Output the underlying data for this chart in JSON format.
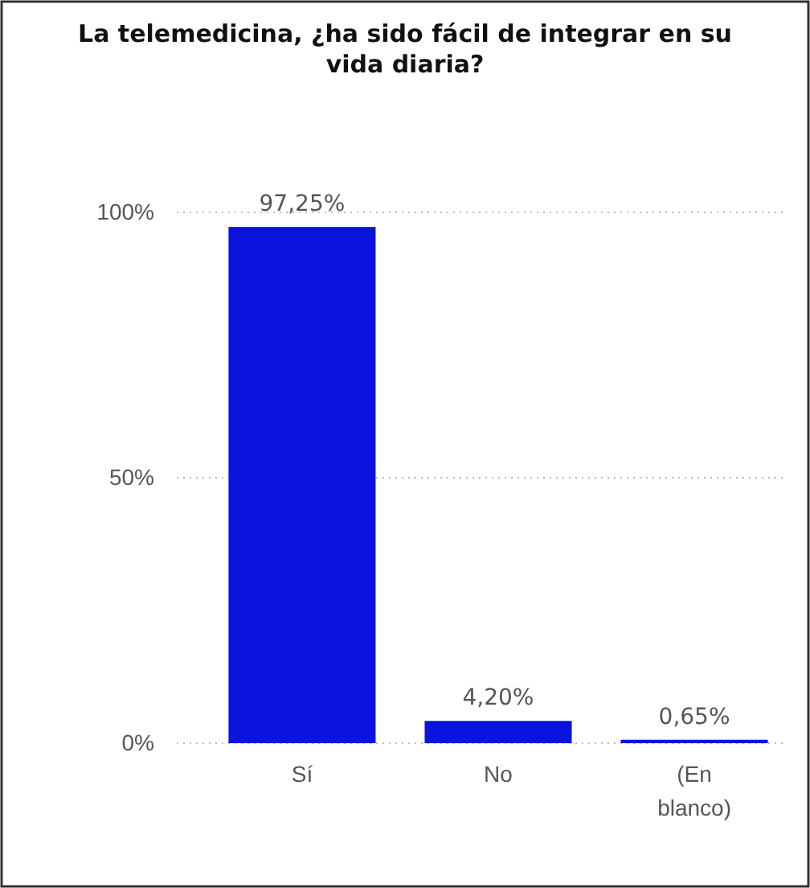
{
  "chart_data": {
    "type": "bar",
    "title": "La telemedicina, ¿ha sido fácil de integrar en su vida diaria?",
    "categories": [
      "Sí",
      "No",
      "(En blanco)"
    ],
    "values": [
      97.25,
      4.2,
      0.65
    ],
    "color": "#0b14dc",
    "value_labels": [
      "97,25%",
      "4,20%",
      "0,65%"
    ],
    "ylim": [
      0,
      100
    ],
    "yticks": [
      {
        "value": 0,
        "label": "0%"
      },
      {
        "value": 50,
        "label": "50%"
      },
      {
        "value": 100,
        "label": "100%"
      }
    ],
    "grid": "y"
  }
}
